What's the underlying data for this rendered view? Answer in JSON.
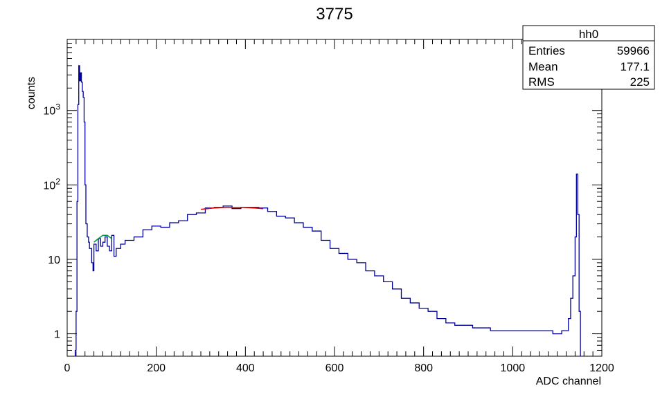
{
  "chart_data": {
    "type": "histogram",
    "title": "3775",
    "xlabel": "ADC channel",
    "ylabel": "counts",
    "xlim": [
      0,
      1200
    ],
    "ylim": [
      0.5,
      9000
    ],
    "yscale": "log",
    "x_ticks": [
      {
        "value": 0,
        "label": "0"
      },
      {
        "value": 200,
        "label": "200"
      },
      {
        "value": 400,
        "label": "400"
      },
      {
        "value": 600,
        "label": "600"
      },
      {
        "value": 800,
        "label": "800"
      },
      {
        "value": 1000,
        "label": "1000"
      },
      {
        "value": 1200,
        "label": "1200"
      }
    ],
    "y_ticks": [
      {
        "value": 1,
        "label": "1"
      },
      {
        "value": 10,
        "label": "10"
      },
      {
        "value": 100,
        "label": "10^2"
      },
      {
        "value": 1000,
        "label": "10^3"
      }
    ],
    "stats_box": {
      "name": "hh0",
      "rows": [
        {
          "label": "Entries",
          "value": "59966"
        },
        {
          "label": "Mean",
          "value": "177.1"
        },
        {
          "label": "RMS",
          "value": "225"
        }
      ]
    },
    "series": [
      {
        "color": "#000099",
        "style": "histogram",
        "points": [
          [
            18,
            0.6
          ],
          [
            20,
            2
          ],
          [
            22,
            60
          ],
          [
            24,
            1200
          ],
          [
            26,
            4000
          ],
          [
            28,
            2500
          ],
          [
            30,
            3200
          ],
          [
            32,
            2400
          ],
          [
            34,
            1800
          ],
          [
            36,
            1500
          ],
          [
            38,
            700
          ],
          [
            40,
            100
          ],
          [
            42,
            30
          ],
          [
            45,
            20
          ],
          [
            48,
            17
          ],
          [
            50,
            14
          ],
          [
            55,
            9
          ],
          [
            58,
            7
          ],
          [
            60,
            16
          ],
          [
            65,
            13
          ],
          [
            70,
            19
          ],
          [
            75,
            15
          ],
          [
            80,
            17
          ],
          [
            85,
            20
          ],
          [
            90,
            15
          ],
          [
            95,
            13
          ],
          [
            100,
            21
          ],
          [
            105,
            11
          ],
          [
            110,
            14
          ],
          [
            120,
            16
          ],
          [
            130,
            18
          ],
          [
            150,
            20
          ],
          [
            170,
            25
          ],
          [
            190,
            28
          ],
          [
            210,
            27
          ],
          [
            230,
            31
          ],
          [
            250,
            33
          ],
          [
            270,
            40
          ],
          [
            290,
            42
          ],
          [
            310,
            49
          ],
          [
            330,
            50
          ],
          [
            350,
            52
          ],
          [
            370,
            48
          ],
          [
            390,
            50
          ],
          [
            410,
            50
          ],
          [
            430,
            49
          ],
          [
            450,
            44
          ],
          [
            470,
            38
          ],
          [
            490,
            36
          ],
          [
            510,
            31
          ],
          [
            530,
            27
          ],
          [
            550,
            24
          ],
          [
            570,
            18
          ],
          [
            590,
            14
          ],
          [
            610,
            12
          ],
          [
            630,
            10
          ],
          [
            650,
            9
          ],
          [
            670,
            7
          ],
          [
            690,
            6
          ],
          [
            710,
            5
          ],
          [
            730,
            4
          ],
          [
            750,
            3
          ],
          [
            770,
            2.6
          ],
          [
            790,
            2.2
          ],
          [
            810,
            2
          ],
          [
            830,
            1.6
          ],
          [
            850,
            1.4
          ],
          [
            870,
            1.3
          ],
          [
            890,
            1.3
          ],
          [
            910,
            1.2
          ],
          [
            930,
            1.2
          ],
          [
            950,
            1.1
          ],
          [
            970,
            1.1
          ],
          [
            990,
            1.1
          ],
          [
            1010,
            1.1
          ],
          [
            1030,
            1.1
          ],
          [
            1050,
            1.1
          ],
          [
            1070,
            1.1
          ],
          [
            1090,
            1
          ],
          [
            1110,
            1.1
          ],
          [
            1125,
            1.6
          ],
          [
            1130,
            3
          ],
          [
            1135,
            6
          ],
          [
            1140,
            20
          ],
          [
            1143,
            140
          ],
          [
            1146,
            40
          ],
          [
            1149,
            2
          ]
        ]
      },
      {
        "color": "#dd0000",
        "style": "fit",
        "points": [
          [
            300,
            47
          ],
          [
            330,
            49
          ],
          [
            360,
            50
          ],
          [
            390,
            50
          ],
          [
            420,
            49
          ],
          [
            440,
            48
          ]
        ]
      },
      {
        "color": "#009944",
        "style": "fit",
        "points": [
          [
            60,
            17
          ],
          [
            70,
            19
          ],
          [
            80,
            21
          ],
          [
            90,
            21
          ],
          [
            100,
            19
          ]
        ]
      }
    ]
  }
}
